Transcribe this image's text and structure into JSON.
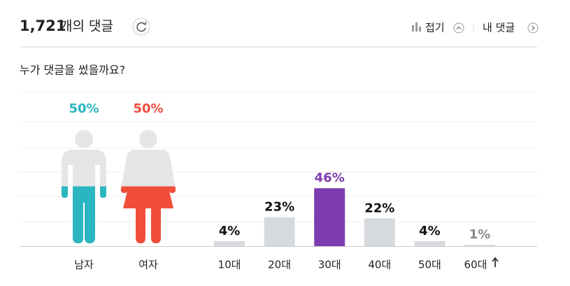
{
  "header": {
    "count": "1,721",
    "title": "개의 댓글",
    "fold": "접기",
    "mine": "내 댓글"
  },
  "question": "누가 댓글을 썼을까요?",
  "chart_data": [
    {
      "type": "gender",
      "categories": [
        "남자",
        "여자"
      ],
      "values": [
        50,
        50
      ],
      "value_labels": [
        "50%",
        "50%"
      ],
      "colors": [
        "#2bb5c0",
        "#f04e3b"
      ],
      "base_color": "#e6e6e6"
    },
    {
      "type": "bar",
      "categories": [
        "10대",
        "20대",
        "30대",
        "40대",
        "50대",
        "60대"
      ],
      "values": [
        4,
        23,
        46,
        22,
        4,
        1
      ],
      "value_labels": [
        "4%",
        "23%",
        "46%",
        "22%",
        "4%",
        "1%"
      ],
      "color": "#d6dadf",
      "highlight_color": "#7d3caf"
    }
  ]
}
